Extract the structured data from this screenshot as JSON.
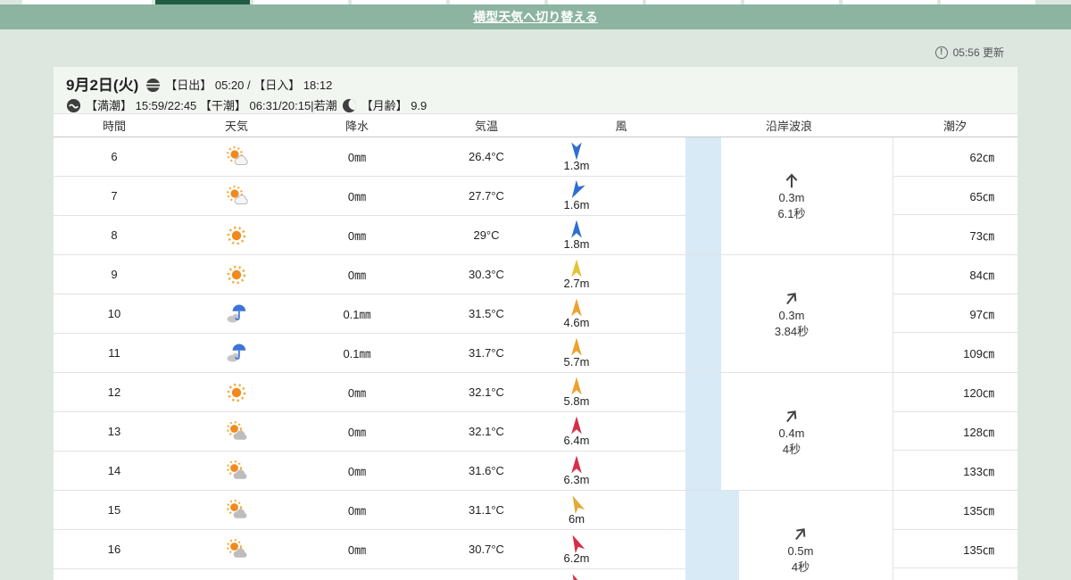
{
  "colors": {
    "page_bg": "#dde7e0",
    "bar_green": "#8cb4a1",
    "active_tab_green": "#1f5c43",
    "tide_strip_blue": "#d7eaf6",
    "wind_low_blue": "#2e6ed0",
    "wind_mid_yellow": "#e5c233",
    "wind_mid_orange": "#efa02f",
    "wind_amber": "#e2ab35",
    "wind_high_red": "#d62e4a"
  },
  "top_tabs": {
    "count": 10,
    "active_index": 1
  },
  "toolbar": {
    "switch_link": "横型天気へ切り替える"
  },
  "status": {
    "updated": "05:56 更新"
  },
  "date_header": {
    "date": "9月2日(火)",
    "sunrise_sunset": "【日出】 05:20 / 【日入】 18:12",
    "tide_info": "【満潮】 15:59/22:45 【干潮】 06:31/20:15|若潮",
    "moon_age": "【月齢】 9.9"
  },
  "table": {
    "headers": [
      "時間",
      "天気",
      "降水",
      "気温",
      "風",
      "沿岸波浪",
      "潮汐"
    ],
    "rows": [
      {
        "hour": "6",
        "icon": "sun-cloud",
        "precip": "0㎜",
        "temp": "26.4°C",
        "wind": {
          "speed": "1.3m",
          "dir": 180,
          "color": "#2e6ed0"
        }
      },
      {
        "hour": "7",
        "icon": "sun-cloud",
        "precip": "0㎜",
        "temp": "27.7°C",
        "wind": {
          "speed": "1.6m",
          "dir": 210,
          "color": "#2e6ed0"
        }
      },
      {
        "hour": "8",
        "icon": "sun",
        "precip": "0㎜",
        "temp": "29°C",
        "wind": {
          "speed": "1.8m",
          "dir": 0,
          "color": "#2e6ed0"
        }
      },
      {
        "hour": "9",
        "icon": "sun",
        "precip": "0㎜",
        "temp": "30.3°C",
        "wind": {
          "speed": "2.7m",
          "dir": 0,
          "color": "#e5c233"
        }
      },
      {
        "hour": "10",
        "icon": "rain-umbrella",
        "precip": "0.1㎜",
        "temp": "31.5°C",
        "wind": {
          "speed": "4.6m",
          "dir": 0,
          "color": "#efa02f"
        }
      },
      {
        "hour": "11",
        "icon": "rain-umbrella",
        "precip": "0.1㎜",
        "temp": "31.7°C",
        "wind": {
          "speed": "5.7m",
          "dir": 0,
          "color": "#efa02f"
        }
      },
      {
        "hour": "12",
        "icon": "sun",
        "precip": "0㎜",
        "temp": "32.1°C",
        "wind": {
          "speed": "5.8m",
          "dir": 0,
          "color": "#efa02f"
        }
      },
      {
        "hour": "13",
        "icon": "cloud-sun",
        "precip": "0㎜",
        "temp": "32.1°C",
        "wind": {
          "speed": "6.4m",
          "dir": 0,
          "color": "#d62e4a"
        }
      },
      {
        "hour": "14",
        "icon": "cloud-sun",
        "precip": "0㎜",
        "temp": "31.6°C",
        "wind": {
          "speed": "6.3m",
          "dir": 0,
          "color": "#d62e4a"
        }
      },
      {
        "hour": "15",
        "icon": "cloud-sun",
        "precip": "0㎜",
        "temp": "31.1°C",
        "wind": {
          "speed": "6m",
          "dir": 335,
          "color": "#e2ab35"
        }
      },
      {
        "hour": "16",
        "icon": "cloud-sun",
        "precip": "0㎜",
        "temp": "30.7°C",
        "wind": {
          "speed": "6.2m",
          "dir": 335,
          "color": "#d62e4a"
        }
      },
      {
        "hour": "",
        "icon": "",
        "precip": "",
        "temp": "",
        "wind": {
          "speed": "",
          "dir": 335,
          "color": "#d62e4a"
        }
      }
    ],
    "wave_groups": [
      {
        "height": "0.3m",
        "period": "6.1秒",
        "dir": 0,
        "tides": [
          "62㎝",
          "65㎝",
          "73㎝"
        ]
      },
      {
        "height": "0.3m",
        "period": "3.84秒",
        "dir": 38,
        "tides": [
          "84㎝",
          "97㎝",
          "109㎝"
        ]
      },
      {
        "height": "0.4m",
        "period": "4秒",
        "dir": 38,
        "tides": [
          "120㎝",
          "128㎝",
          "133㎝"
        ]
      },
      {
        "height": "0.5m",
        "period": "4秒",
        "dir": 38,
        "tides": [
          "135㎝",
          "135㎝",
          ""
        ]
      }
    ]
  }
}
